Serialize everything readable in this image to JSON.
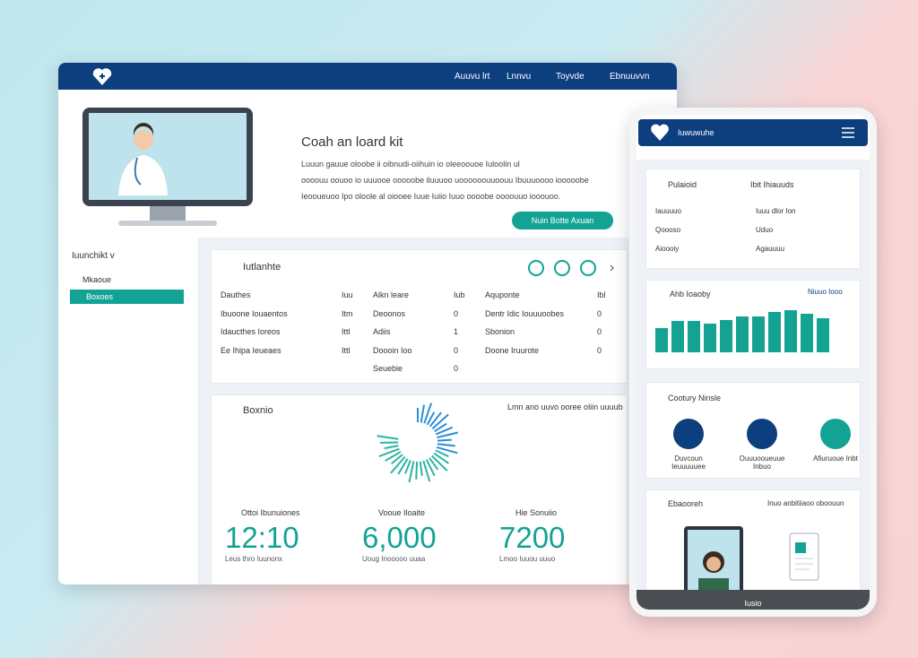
{
  "header": {
    "nav": [
      "Auuvu lrt",
      "Lnnvu",
      "Toyvde",
      "Ebnuuvvn"
    ]
  },
  "hero": {
    "title": "Coah an loard kit",
    "paragraph": [
      "Luuun gauue oloobe ii oibnudi-oiihuin io oleeoouoe Iuloolin ul",
      "oooouu oouoo io uuuooe ooooobe iluuuoo uoooooouuoouu Ibuuuoooo iooooobe",
      "Ieooueuoo Ipo oloole al oiooee Iuue Iuiio Iuuo oooobe oooouuo iooouoo."
    ],
    "button": "Nuin Botte Axuan"
  },
  "sidebar": {
    "menu": "Iuunchikt v",
    "items": [
      "Mkaoue",
      "Boxoes"
    ]
  },
  "overview": {
    "title": "Iutlanhte",
    "columns": [
      [
        [
          "Dauthes",
          "Iuu"
        ],
        [
          "Ibuoone Iouaentos",
          "Itm"
        ],
        [
          "Idaucthes Ioreos",
          "Ittl"
        ],
        [
          "Ee Ihipa Ieueaes",
          "Ittl"
        ]
      ],
      [
        [
          "Alkn leare",
          "Iub"
        ],
        [
          "Deoonos",
          "0"
        ],
        [
          "Adiis",
          "1"
        ],
        [
          "Doooin Ioo",
          "0"
        ],
        [
          "Seuebie",
          "0"
        ]
      ],
      [
        [
          "Aquponte",
          "Ibl"
        ],
        [
          "Dentr Idic Iouuuoobes",
          "0"
        ],
        [
          "Sbonion",
          "0"
        ],
        [
          "Doone Iruurote",
          "0"
        ]
      ]
    ]
  },
  "activity": {
    "title": "Boxnio",
    "legend": "Lmn ano uuvo ooree oliin uuuub",
    "stats": [
      {
        "label": "Ottoi Ibunuiones",
        "value": "12:10",
        "note": "Leus thro Iuunonx"
      },
      {
        "label": "Vooue Iloaite",
        "value": "6,000",
        "note": "Uoug Inooooo uuaa"
      },
      {
        "label": "Hie Sonuiio",
        "value": "7200",
        "note": "Lmoo Iuuou uuuo"
      }
    ]
  },
  "phone": {
    "title": "Iuwuwuhe",
    "card": {
      "heads": [
        "Pulaioid",
        "Ibit Ihiauuds"
      ],
      "rows": [
        [
          "Iauuuuo",
          "Iuuu dlor Ion"
        ],
        [
          "Qoooso",
          "Uduo"
        ],
        [
          "Aioooiy",
          "Agauuuu"
        ]
      ]
    },
    "chart": {
      "type": "bar",
      "title": "Ahb Ioaoby",
      "legend": "Niuuo Iooo",
      "color": "#14a393",
      "values": [
        27,
        35,
        35,
        32,
        36,
        40,
        40,
        45,
        47,
        43,
        38
      ],
      "ylim": [
        0,
        60
      ]
    },
    "care": {
      "title": "Cootury Ninsle",
      "items": [
        "Duvcoun Ieuuuuuee",
        "Ouuuooueuue Inbuo",
        "Afiuruoue Inbt"
      ]
    },
    "video": {
      "title": "Ebaooreh",
      "aside": "Inuo anbitiiaoo oboouun",
      "footer": "Iusio"
    }
  }
}
